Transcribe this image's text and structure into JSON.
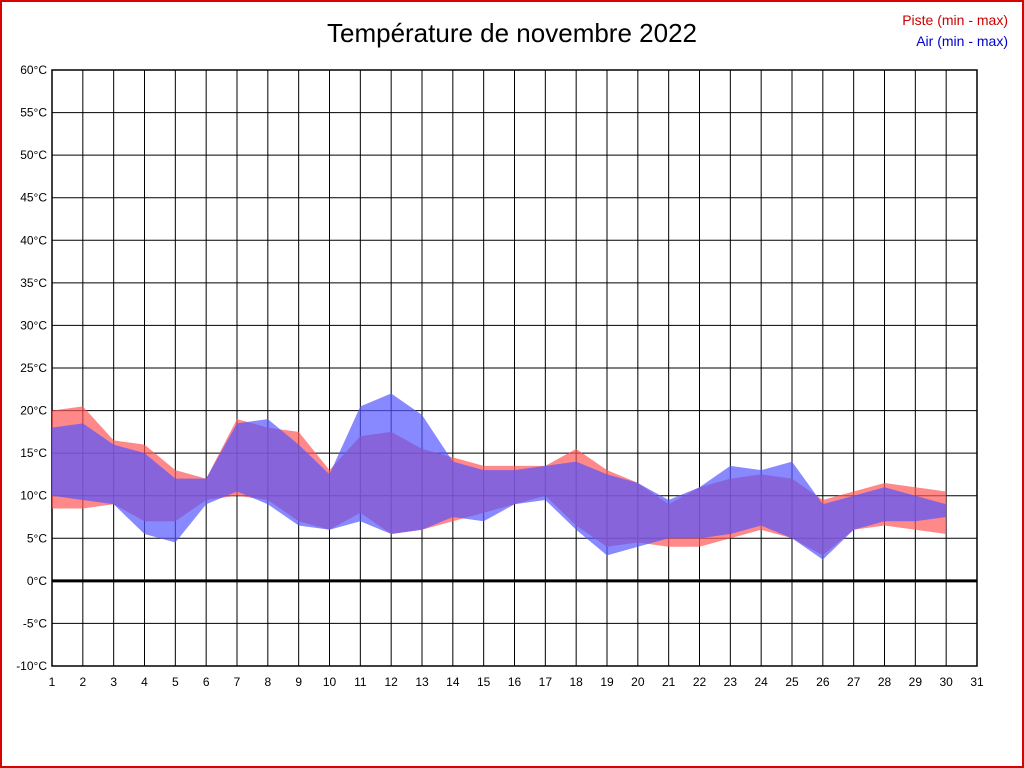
{
  "title": "Température de novembre 2022",
  "legend": {
    "piste": "Piste (min - max)",
    "air": "Air (min - max)",
    "piste_color": "#cc0000",
    "air_color": "#0000cc"
  },
  "frame_color": "#dd0000",
  "chart_data": {
    "type": "area",
    "title": "Température de novembre 2022",
    "xlabel": "",
    "ylabel": "",
    "xlim": [
      1,
      31
    ],
    "ylim": [
      -10,
      60
    ],
    "grid": true,
    "legend_position": "top-right",
    "x_ticks": [
      "1",
      "2",
      "3",
      "4",
      "5",
      "6",
      "7",
      "8",
      "9",
      "10",
      "11",
      "12",
      "13",
      "14",
      "15",
      "16",
      "17",
      "18",
      "19",
      "20",
      "21",
      "22",
      "23",
      "24",
      "25",
      "26",
      "27",
      "28",
      "29",
      "30",
      "31"
    ],
    "y_ticks": [
      "60°C",
      "55°C",
      "50°C",
      "45°C",
      "40°C",
      "35°C",
      "30°C",
      "25°C",
      "20°C",
      "15°C",
      "10°C",
      "5°C",
      "0°C",
      "-5°C",
      "-10°C"
    ],
    "y_tick_values": [
      60,
      55,
      50,
      45,
      40,
      35,
      30,
      25,
      20,
      15,
      10,
      5,
      0,
      -5,
      -10
    ],
    "x": [
      1,
      2,
      3,
      4,
      5,
      6,
      7,
      8,
      9,
      10,
      11,
      12,
      13,
      14,
      15,
      16,
      17,
      18,
      19,
      20,
      21,
      22,
      23,
      24,
      25,
      26,
      27,
      28,
      29,
      30
    ],
    "series": [
      {
        "name": "Piste max",
        "values": [
          20,
          20.5,
          16.5,
          16,
          13,
          12,
          19,
          18,
          17.5,
          13,
          17,
          17.5,
          15.5,
          14.5,
          13.5,
          13.5,
          13.5,
          15.5,
          13,
          11.5,
          9,
          11,
          12,
          12.5,
          12,
          9.5,
          10.5,
          11.5,
          11,
          10.5
        ]
      },
      {
        "name": "Piste min",
        "values": [
          8.5,
          8.5,
          9,
          7,
          7,
          9.5,
          10,
          9.5,
          7,
          6,
          8,
          5.5,
          6,
          7,
          8,
          9,
          10,
          6.5,
          4,
          4.5,
          4,
          4,
          5,
          6,
          5,
          3,
          6,
          6.5,
          6,
          5.5
        ]
      },
      {
        "name": "Air max",
        "values": [
          18,
          18.5,
          16,
          15,
          12,
          12,
          18.5,
          19,
          16,
          12.5,
          20.5,
          22,
          19.5,
          14,
          13,
          13,
          13.5,
          14,
          12.5,
          11.5,
          9.5,
          11,
          13.5,
          13,
          14,
          9,
          10,
          11,
          10,
          9
        ]
      },
      {
        "name": "Air min",
        "values": [
          10,
          9.5,
          9,
          5.5,
          4.5,
          9,
          10.5,
          9,
          6.5,
          6,
          7,
          5.5,
          6,
          7.5,
          7,
          9,
          9.5,
          6,
          3,
          4,
          5,
          5,
          5.5,
          6.5,
          5,
          2.5,
          6,
          7,
          7,
          7.5
        ]
      }
    ],
    "colors": {
      "piste_fill": "#ff5555",
      "air_fill": "#5555ff",
      "fill_opacity": 0.7,
      "grid": "#000000",
      "zero_line": "#000000"
    }
  }
}
